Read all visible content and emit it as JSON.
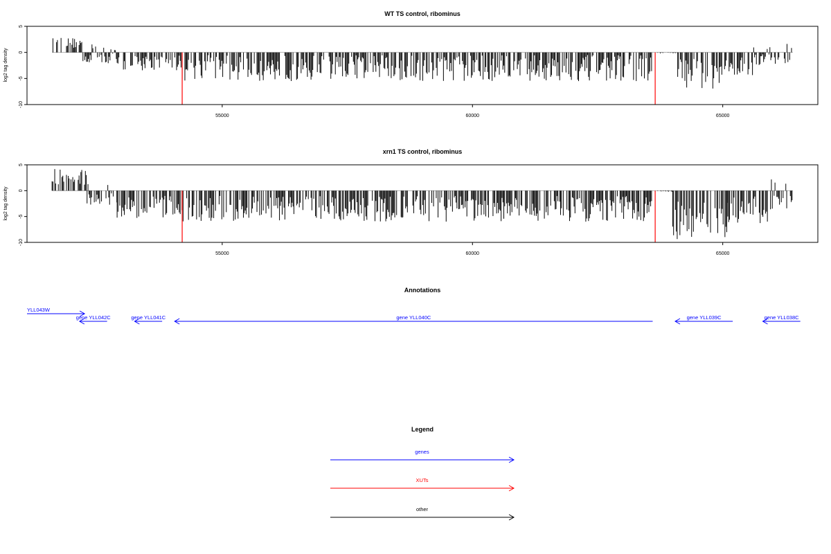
{
  "chart_data": [
    {
      "type": "bar",
      "title": "WT TS control, ribominus",
      "xlabel": "",
      "ylabel": "log2 tag density",
      "xlim": [
        51100,
        66900
      ],
      "ylim": [
        -10,
        5
      ],
      "xticks": [
        55000,
        60000,
        65000
      ],
      "yticks": [
        5,
        0,
        -5,
        -10
      ],
      "grid": false,
      "highlight_color": "#ff0000",
      "bar_color": "#000000",
      "positions_range": [
        51600,
        66400
      ],
      "highlight_positions": [
        54200,
        63650
      ],
      "highlight_value": -10,
      "profile": [
        {
          "from": 51600,
          "to": 52200,
          "min": 0.8,
          "max": 2.8,
          "sign": 1
        },
        {
          "from": 52200,
          "to": 52900,
          "min": -2.2,
          "max": 2.0,
          "sign": 0
        },
        {
          "from": 52900,
          "to": 54200,
          "min": -3.5,
          "max": -0.5,
          "sign": -1
        },
        {
          "from": 54200,
          "to": 63600,
          "min": -5.5,
          "max": -0.5,
          "sign": -1
        },
        {
          "from": 63700,
          "to": 64100,
          "min": -0.2,
          "max": 0.0,
          "sign": 0
        },
        {
          "from": 64100,
          "to": 65000,
          "min": -7.0,
          "max": -1.0,
          "sign": -1
        },
        {
          "from": 65000,
          "to": 65600,
          "min": -4.5,
          "max": -1.0,
          "sign": -1
        },
        {
          "from": 65600,
          "to": 66400,
          "min": -2.5,
          "max": 2.2,
          "sign": 0
        }
      ]
    },
    {
      "type": "bar",
      "title": "xrn1 TS control, ribominus",
      "xlabel": "",
      "ylabel": "log2 tag density",
      "xlim": [
        51100,
        66900
      ],
      "ylim": [
        -10,
        5
      ],
      "xticks": [
        55000,
        60000,
        65000
      ],
      "yticks": [
        5,
        0,
        -5,
        -10
      ],
      "grid": false,
      "highlight_color": "#ff0000",
      "bar_color": "#000000",
      "positions_range": [
        51600,
        66400
      ],
      "highlight_positions": [
        54200,
        63650
      ],
      "highlight_value": -10,
      "profile": [
        {
          "from": 51600,
          "to": 52300,
          "min": 1.0,
          "max": 4.5,
          "sign": 1
        },
        {
          "from": 52300,
          "to": 52900,
          "min": -3.0,
          "max": 1.5,
          "sign": 0
        },
        {
          "from": 52900,
          "to": 54200,
          "min": -5.5,
          "max": -1.0,
          "sign": -1
        },
        {
          "from": 54200,
          "to": 63600,
          "min": -6.0,
          "max": -1.0,
          "sign": -1
        },
        {
          "from": 63700,
          "to": 64000,
          "min": -0.2,
          "max": 0.0,
          "sign": 0
        },
        {
          "from": 64000,
          "to": 65100,
          "min": -9.5,
          "max": -2.0,
          "sign": -1
        },
        {
          "from": 65100,
          "to": 65900,
          "min": -6.5,
          "max": -1.0,
          "sign": -1
        },
        {
          "from": 65900,
          "to": 66400,
          "min": -4.0,
          "max": 2.8,
          "sign": 0
        }
      ]
    }
  ],
  "annotations": {
    "title": "Annotations",
    "genes": [
      {
        "label": "YLL043W",
        "from": 51100,
        "to": 52250,
        "direction": "right",
        "row": 0
      },
      {
        "label": "gene YLL042C",
        "from": 52700,
        "to": 52150,
        "direction": "left",
        "row": 1
      },
      {
        "label": "gene YLL041C",
        "from": 53800,
        "to": 53250,
        "direction": "left",
        "row": 1
      },
      {
        "label": "gene YLL040C",
        "from": 63600,
        "to": 54050,
        "direction": "left",
        "row": 1
      },
      {
        "label": "gene YLL039C",
        "from": 65200,
        "to": 64050,
        "direction": "left",
        "row": 1
      },
      {
        "label": "gene YLL038C",
        "from": 66550,
        "to": 65800,
        "direction": "left",
        "row": 1
      }
    ],
    "color": "#0000ff"
  },
  "legend": {
    "title": "Legend",
    "entries": [
      {
        "label": "genes",
        "color": "#0000ff"
      },
      {
        "label": "XUTs",
        "color": "#ff0000"
      },
      {
        "label": "other",
        "color": "#000000"
      }
    ]
  }
}
